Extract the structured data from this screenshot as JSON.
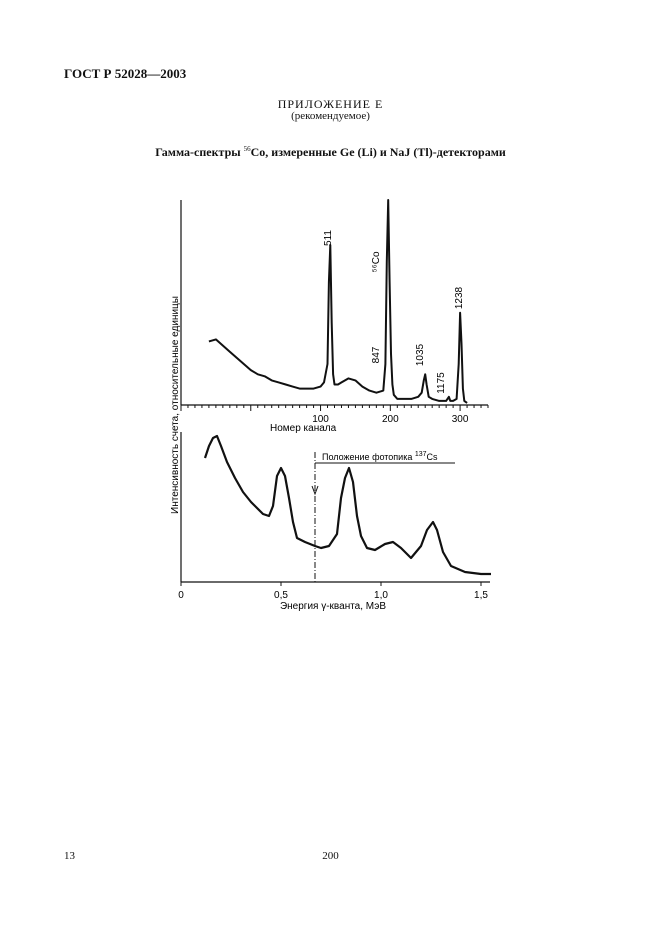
{
  "header": {
    "doc_code": "ГОСТ Р 52028—2003"
  },
  "appendix": {
    "title": "ПРИЛОЖЕНИЕ Е",
    "subtitle": "(рекомендуемое)"
  },
  "figure": {
    "title_pre": "Гамма-спектры ",
    "title_sup": "56",
    "title_post": "Co, измеренные Ge (Li) и NaJ (Tl)-детекторами"
  },
  "footer": {
    "page_left": "13",
    "page_center": "200"
  },
  "chart_data": [
    {
      "type": "line",
      "title": "",
      "xlabel": "Номер канала",
      "ylabel": "Интенсивность счета, относительные единицы",
      "xlim": [
        -100,
        340
      ],
      "x_ticks": [
        100,
        200,
        300
      ],
      "peak_labels": [
        {
          "text": "511",
          "x": 115
        },
        {
          "text": "⁵⁶Co",
          "x": 198
        },
        {
          "text": "847",
          "x": 198
        },
        {
          "text": "1035",
          "x": 250
        },
        {
          "text": "1175",
          "x": 283
        },
        {
          "text": "1238",
          "x": 303
        }
      ],
      "series": [
        {
          "x": [
            -60,
            -50,
            -40,
            -30,
            -20,
            -10,
            0,
            10,
            20,
            30,
            40,
            50,
            60,
            70,
            80,
            90,
            100,
            105,
            110,
            112,
            114,
            116,
            118,
            120,
            125,
            130,
            140,
            150,
            160,
            170,
            180,
            190,
            193,
            195,
            197,
            199,
            201,
            203,
            205,
            210,
            220,
            230,
            240,
            245,
            248,
            250,
            252,
            255,
            260,
            270,
            280,
            284,
            286,
            290,
            295,
            298,
            300,
            302,
            304,
            306,
            310
          ],
          "y": [
            0.31,
            0.32,
            0.29,
            0.26,
            0.23,
            0.2,
            0.17,
            0.15,
            0.14,
            0.12,
            0.11,
            0.1,
            0.09,
            0.08,
            0.08,
            0.08,
            0.09,
            0.11,
            0.2,
            0.6,
            0.78,
            0.4,
            0.15,
            0.1,
            0.1,
            0.11,
            0.13,
            0.12,
            0.09,
            0.07,
            0.06,
            0.07,
            0.2,
            0.7,
            1.0,
            0.6,
            0.25,
            0.1,
            0.05,
            0.03,
            0.03,
            0.03,
            0.04,
            0.06,
            0.12,
            0.15,
            0.1,
            0.04,
            0.03,
            0.02,
            0.02,
            0.04,
            0.02,
            0.02,
            0.03,
            0.2,
            0.45,
            0.3,
            0.08,
            0.02,
            0.01
          ]
        }
      ]
    },
    {
      "type": "line",
      "title": "",
      "xlabel": "Энергия γ-кванта, МэВ",
      "ylabel": "",
      "xlim": [
        0,
        1.55
      ],
      "x_ticks": [
        0,
        0.5,
        1.0,
        1.5
      ],
      "x_tick_labels": [
        "0",
        "0,5",
        "1,0",
        "1,5"
      ],
      "annotation": {
        "text": "Положение фотопика ",
        "sup": "137",
        "text2": "Cs",
        "x": 0.67
      },
      "series": [
        {
          "x": [
            0.12,
            0.14,
            0.16,
            0.18,
            0.2,
            0.23,
            0.27,
            0.31,
            0.35,
            0.38,
            0.41,
            0.44,
            0.46,
            0.48,
            0.5,
            0.52,
            0.54,
            0.56,
            0.58,
            0.62,
            0.67,
            0.7,
            0.74,
            0.78,
            0.8,
            0.82,
            0.84,
            0.86,
            0.88,
            0.9,
            0.93,
            0.97,
            1.02,
            1.06,
            1.1,
            1.15,
            1.2,
            1.23,
            1.26,
            1.28,
            1.31,
            1.35,
            1.42,
            1.5,
            1.55
          ],
          "y": [
            0.62,
            0.68,
            0.72,
            0.73,
            0.68,
            0.6,
            0.52,
            0.45,
            0.4,
            0.37,
            0.34,
            0.33,
            0.38,
            0.53,
            0.57,
            0.53,
            0.42,
            0.3,
            0.22,
            0.2,
            0.18,
            0.17,
            0.18,
            0.24,
            0.42,
            0.52,
            0.57,
            0.5,
            0.33,
            0.23,
            0.17,
            0.16,
            0.19,
            0.2,
            0.17,
            0.12,
            0.18,
            0.26,
            0.3,
            0.26,
            0.15,
            0.08,
            0.05,
            0.04,
            0.04
          ]
        }
      ]
    }
  ]
}
